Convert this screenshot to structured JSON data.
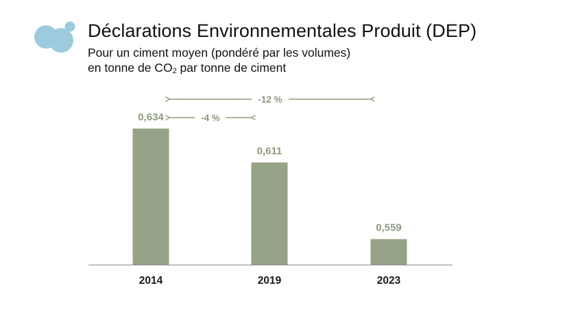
{
  "title": "Déclarations Environnementales Produit (DEP)",
  "subtitle": {
    "line1": "Pour un ciment moyen (pondéré par les volumes)",
    "line2_prefix": "en tonne de CO",
    "line2_sub": "2",
    "line2_suffix": " par tonne de ciment"
  },
  "colors": {
    "bar": "#96a386",
    "label": "#8d9a7c",
    "logo": "#9dcbdd"
  },
  "chart_data": {
    "type": "bar",
    "title": "Déclarations Environnementales Produit (DEP)",
    "categories": [
      "2014",
      "2019",
      "2023"
    ],
    "values": [
      0.634,
      0.611,
      0.559
    ],
    "value_labels": [
      "0,634",
      "0,611",
      "0,559"
    ],
    "ylabel": "tonne de CO2 par tonne de ciment",
    "ylim": [
      0.5,
      0.65
    ],
    "annotations": [
      {
        "text": "-4 %",
        "from": "2014",
        "to": "2019"
      },
      {
        "text": "-12 %",
        "from": "2014",
        "to": "2023"
      }
    ]
  }
}
